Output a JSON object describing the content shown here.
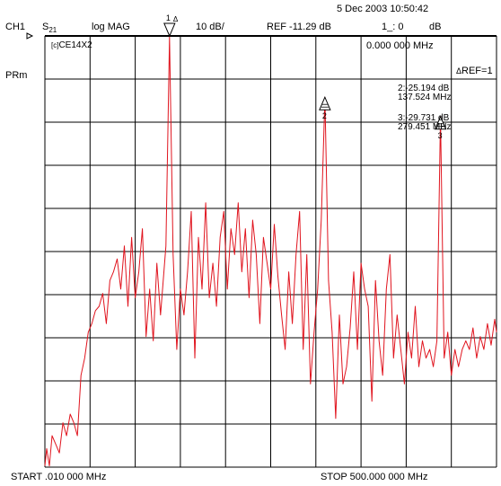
{
  "header": {
    "datetime": "5 Dec 2003  10:50:42",
    "channel": "CH1",
    "param_main": "S",
    "param_sub": "21",
    "format": "log MAG",
    "scale": "10 dB/",
    "reference": "REF -11.29 dB",
    "marker_readout_label": "1_: 0",
    "marker_readout_unit": "dB"
  },
  "left_labels": {
    "prm": "PRm"
  },
  "grid_labels": {
    "cal_state": "CE14X2",
    "marker_freq": "0.000 000 MHz",
    "ref_marker": "REF=1"
  },
  "markers": [
    {
      "id": "1",
      "freq_mhz": 138,
      "level_db": -11.3
    },
    {
      "id": "2",
      "freq_mhz": 137.524,
      "level_db": -25.194,
      "value_text": ":-25.194 dB",
      "freq_text": "137.524 MHz"
    },
    {
      "id": "3",
      "freq_mhz": 279.451,
      "level_db": -29.731,
      "value_text": ":-29.731 dB",
      "freq_text": "279.451 MHz"
    }
  ],
  "footer": {
    "start": "START  .010 000 MHz",
    "stop": "STOP  500.000 000 MHz"
  },
  "colors": {
    "trace": "#e0141e",
    "grid": "#000000",
    "text": "#000000"
  },
  "chart_data": {
    "type": "line",
    "x_range_mhz": [
      0.01,
      500
    ],
    "y_range_db": [
      -111.29,
      -11.29
    ],
    "ref_level_db": -11.29,
    "scale_db_per_div": 10,
    "grid": true,
    "series": [
      {
        "values": [
          [
            0,
            -111
          ],
          [
            2,
            -107
          ],
          [
            5,
            -111
          ],
          [
            8,
            -104
          ],
          [
            12,
            -106
          ],
          [
            16,
            -108
          ],
          [
            20,
            -101
          ],
          [
            24,
            -104
          ],
          [
            28,
            -99
          ],
          [
            32,
            -101
          ],
          [
            36,
            -104
          ],
          [
            40,
            -90
          ],
          [
            44,
            -86
          ],
          [
            48,
            -80
          ],
          [
            52,
            -78
          ],
          [
            56,
            -75
          ],
          [
            60,
            -74
          ],
          [
            64,
            -71
          ],
          [
            68,
            -78
          ],
          [
            72,
            -68
          ],
          [
            76,
            -66
          ],
          [
            80,
            -63
          ],
          [
            84,
            -70
          ],
          [
            88,
            -60
          ],
          [
            92,
            -74
          ],
          [
            96,
            -58
          ],
          [
            100,
            -72
          ],
          [
            104,
            -66
          ],
          [
            108,
            -56
          ],
          [
            112,
            -81
          ],
          [
            116,
            -70
          ],
          [
            120,
            -82
          ],
          [
            124,
            -64
          ],
          [
            128,
            -76
          ],
          [
            134,
            -60
          ],
          [
            138,
            -11.5
          ],
          [
            142,
            -62
          ],
          [
            146,
            -84
          ],
          [
            150,
            -70
          ],
          [
            154,
            -76
          ],
          [
            158,
            -66
          ],
          [
            162,
            -52
          ],
          [
            166,
            -86
          ],
          [
            170,
            -58
          ],
          [
            174,
            -70
          ],
          [
            178,
            -50
          ],
          [
            182,
            -72
          ],
          [
            186,
            -64
          ],
          [
            190,
            -74
          ],
          [
            194,
            -58
          ],
          [
            198,
            -52
          ],
          [
            202,
            -70
          ],
          [
            206,
            -56
          ],
          [
            210,
            -62
          ],
          [
            214,
            -50
          ],
          [
            218,
            -66
          ],
          [
            222,
            -56
          ],
          [
            226,
            -72
          ],
          [
            230,
            -54
          ],
          [
            234,
            -62
          ],
          [
            238,
            -78
          ],
          [
            242,
            -58
          ],
          [
            246,
            -64
          ],
          [
            250,
            -70
          ],
          [
            254,
            -55
          ],
          [
            258,
            -67
          ],
          [
            262,
            -76
          ],
          [
            266,
            -84
          ],
          [
            270,
            -66
          ],
          [
            274,
            -78
          ],
          [
            278,
            -62
          ],
          [
            282,
            -52
          ],
          [
            286,
            -84
          ],
          [
            290,
            -62
          ],
          [
            294,
            -92
          ],
          [
            298,
            -80
          ],
          [
            302,
            -70
          ],
          [
            306,
            -54
          ],
          [
            310,
            -25.5
          ],
          [
            314,
            -68
          ],
          [
            318,
            -80
          ],
          [
            322,
            -100
          ],
          [
            326,
            -76
          ],
          [
            330,
            -92
          ],
          [
            334,
            -88
          ],
          [
            338,
            -79
          ],
          [
            342,
            -66
          ],
          [
            346,
            -84
          ],
          [
            350,
            -64
          ],
          [
            354,
            -70
          ],
          [
            358,
            -74
          ],
          [
            362,
            -96
          ],
          [
            366,
            -68
          ],
          [
            370,
            -82
          ],
          [
            374,
            -90
          ],
          [
            378,
            -70
          ],
          [
            382,
            -62
          ],
          [
            386,
            -86
          ],
          [
            390,
            -76
          ],
          [
            394,
            -84
          ],
          [
            398,
            -92
          ],
          [
            402,
            -80
          ],
          [
            406,
            -86
          ],
          [
            410,
            -74
          ],
          [
            414,
            -88
          ],
          [
            418,
            -82
          ],
          [
            422,
            -86
          ],
          [
            426,
            -84
          ],
          [
            430,
            -88
          ],
          [
            434,
            -82
          ],
          [
            438,
            -30
          ],
          [
            442,
            -86
          ],
          [
            446,
            -80
          ],
          [
            450,
            -90
          ],
          [
            454,
            -84
          ],
          [
            458,
            -88
          ],
          [
            462,
            -84
          ],
          [
            466,
            -82
          ],
          [
            470,
            -84
          ],
          [
            474,
            -79
          ],
          [
            478,
            -86
          ],
          [
            482,
            -81
          ],
          [
            486,
            -84
          ],
          [
            490,
            -78
          ],
          [
            494,
            -83
          ],
          [
            498,
            -77
          ],
          [
            500,
            -80
          ]
        ]
      }
    ]
  }
}
